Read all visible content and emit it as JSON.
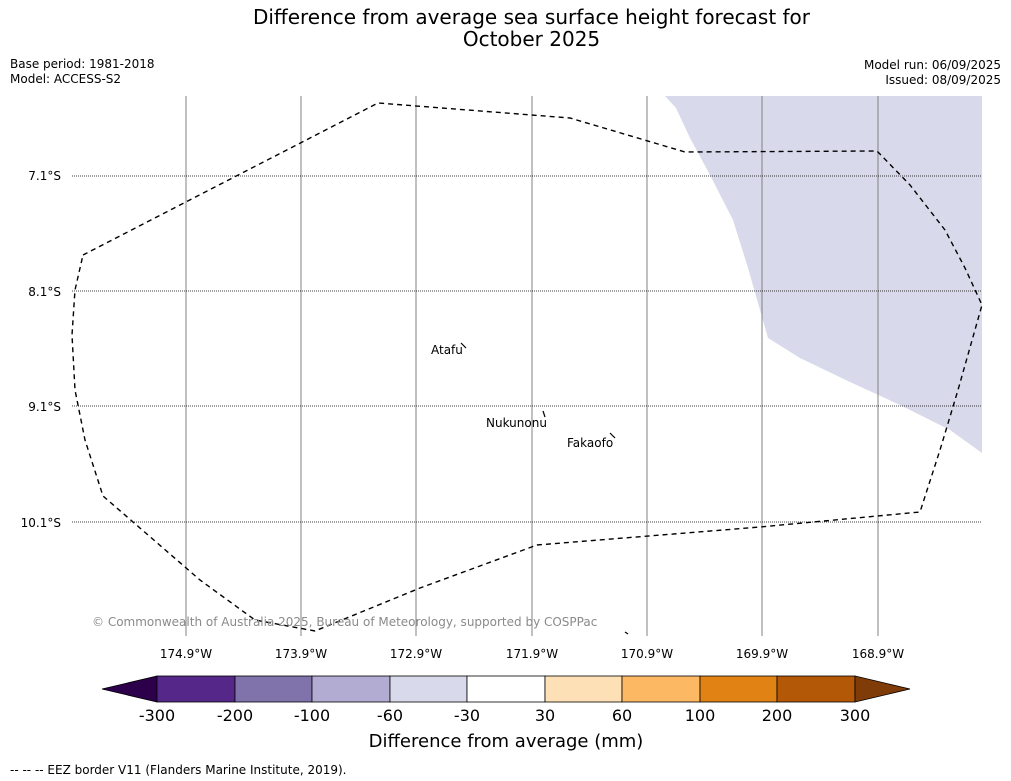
{
  "title_line1": "Difference from average sea surface height forecast for",
  "title_line2": "October 2025",
  "base_period": "Base period: 1981-2018",
  "model": "Model: ACCESS-S2",
  "model_run": "Model run: 06/09/2025",
  "issued": "Issued: 08/09/2025",
  "lat_labels": [
    "7.1°S",
    "8.1°S",
    "9.1°S",
    "10.1°S"
  ],
  "lon_labels": [
    "174.9°W",
    "173.9°W",
    "172.9°W",
    "171.9°W",
    "170.9°W",
    "169.9°W",
    "168.9°W"
  ],
  "places": {
    "atafu": "Atafu",
    "nukunonu": "Nukunonu",
    "fakaofo": "Fakaofo"
  },
  "copyright": "© Commonwealth of Australia 2025, Bureau of Meteorology, supported by COSPPac",
  "colorbar": {
    "ticks": [
      "-300",
      "-200",
      "-100",
      "-60",
      "-30",
      "30",
      "60",
      "100",
      "200",
      "300"
    ],
    "colors": [
      "#2d004b",
      "#542788",
      "#8073ac",
      "#b2abd2",
      "#d8daeb",
      "#ffffff",
      "#fee0b6",
      "#fdb863",
      "#e08214",
      "#b35806",
      "#7f3b08"
    ],
    "label": "Difference from average (mm)"
  },
  "shading_color": "#d8daeb",
  "legend_note": "--  --  -- EEZ border V11 (Flanders Marine Institute, 2019)."
}
